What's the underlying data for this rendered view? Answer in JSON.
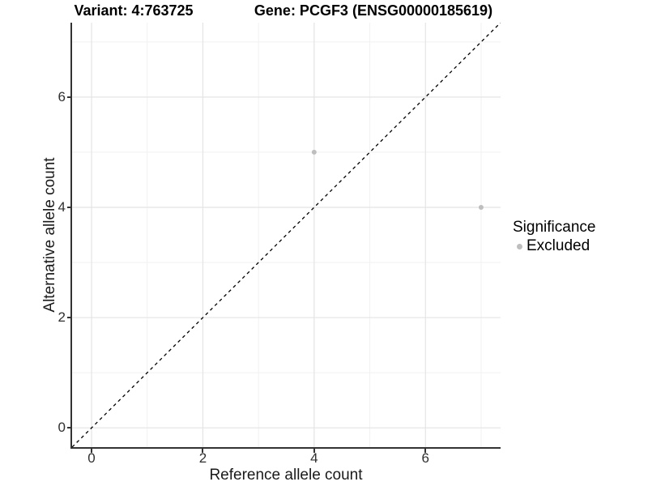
{
  "titles": {
    "variant": "Variant: 4:763725",
    "gene": "Gene: PCGF3 (ENSG00000185619)"
  },
  "chart_data": {
    "type": "scatter",
    "title": "Variant: 4:763725 — Gene: PCGF3 (ENSG00000185619)",
    "xlabel": "Reference allele count",
    "ylabel": "Alternative allele count",
    "xlim": [
      -0.35,
      7.35
    ],
    "ylim": [
      -0.35,
      7.35
    ],
    "x_major_ticks": [
      0,
      2,
      4,
      6
    ],
    "y_major_ticks": [
      0,
      2,
      4,
      6
    ],
    "x_minor_gridlines": [
      1,
      3,
      5,
      7
    ],
    "y_minor_gridlines": [
      1,
      3,
      5,
      7
    ],
    "grid": "on",
    "series": [
      {
        "name": "Excluded",
        "points": [
          {
            "x": 4,
            "y": 5
          },
          {
            "x": 7,
            "y": 4
          }
        ]
      }
    ],
    "identity_line": {
      "label": "y = x",
      "style": "dashed",
      "from": [
        -0.35,
        -0.35
      ],
      "to": [
        7.35,
        7.35
      ]
    },
    "legend": {
      "title": "Significance",
      "position": "right",
      "items": [
        {
          "label": "Excluded",
          "color": "#bebebe"
        }
      ]
    }
  },
  "colors": {
    "point": "#bebebe",
    "axis_line": "#333333",
    "grid_major": "#e4e4e4",
    "grid_minor": "#f1f1f1",
    "identity_line": "#000000",
    "background": "#ffffff"
  }
}
